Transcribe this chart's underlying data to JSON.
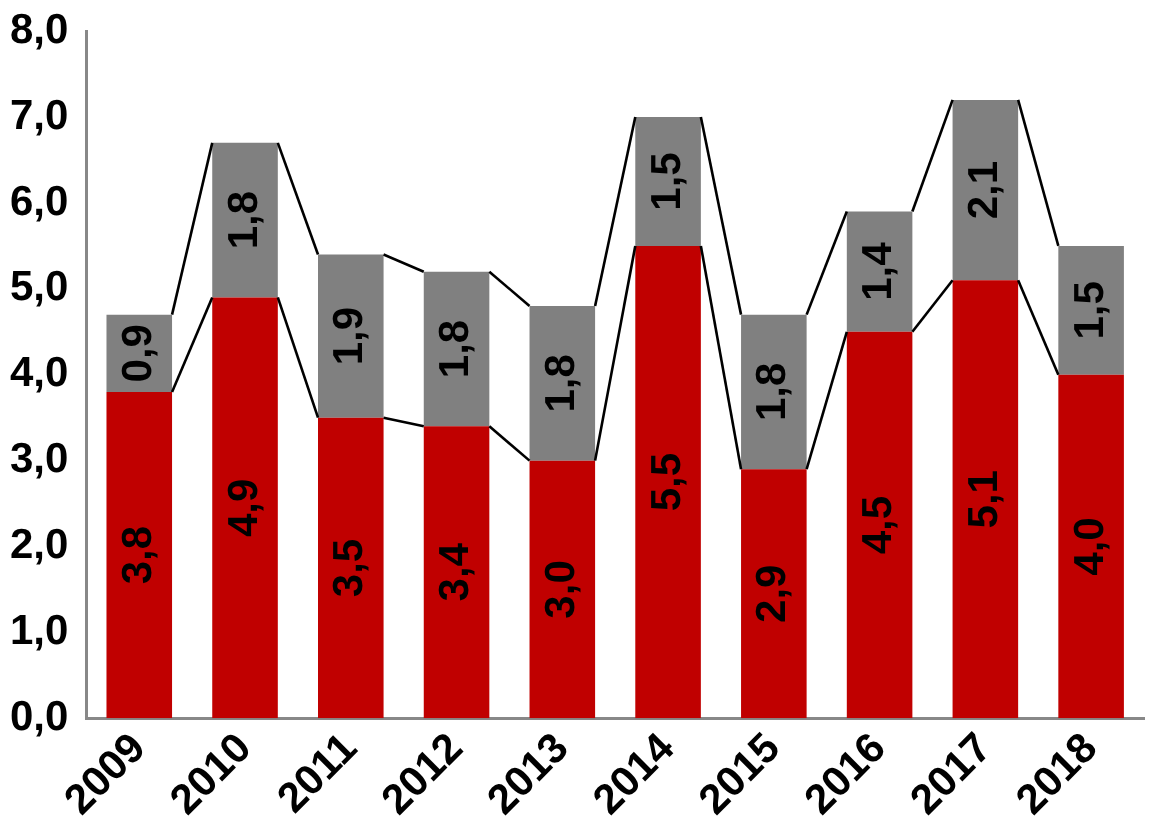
{
  "chart_data": {
    "type": "bar",
    "stacked": true,
    "data_labels": true,
    "grid": false,
    "legend": false,
    "categories": [
      "2009",
      "2010",
      "2011",
      "2012",
      "2013",
      "2014",
      "2015",
      "2016",
      "2017",
      "2018"
    ],
    "series": [
      {
        "color": "#c00000",
        "values": [
          3.8,
          4.9,
          3.5,
          3.4,
          3.0,
          5.5,
          2.9,
          4.5,
          5.1,
          4.0
        ],
        "value_labels": [
          "3,8",
          "4,9",
          "3,5",
          "3,4",
          "3,0",
          "5,5",
          "2,9",
          "4,5",
          "5,1",
          "4,0"
        ]
      },
      {
        "color": "#808080",
        "values": [
          0.9,
          1.8,
          1.9,
          1.8,
          1.8,
          1.5,
          1.8,
          1.4,
          2.1,
          1.5
        ],
        "value_labels": [
          "0,9",
          "1,8",
          "1,9",
          "1,8",
          "1,8",
          "1,5",
          "1,8",
          "1,4",
          "2,1",
          "1,5"
        ]
      }
    ],
    "ylim": [
      0,
      8
    ],
    "yticks": [
      {
        "value": 0,
        "label": "0,0"
      },
      {
        "value": 1,
        "label": "1,0"
      },
      {
        "value": 2,
        "label": "2,0"
      },
      {
        "value": 3,
        "label": "3,0"
      },
      {
        "value": 4,
        "label": "4,0"
      },
      {
        "value": 5,
        "label": "5,0"
      },
      {
        "value": 6,
        "label": "6,0"
      },
      {
        "value": 7,
        "label": "7,0"
      },
      {
        "value": 8,
        "label": "8,0"
      }
    ]
  }
}
